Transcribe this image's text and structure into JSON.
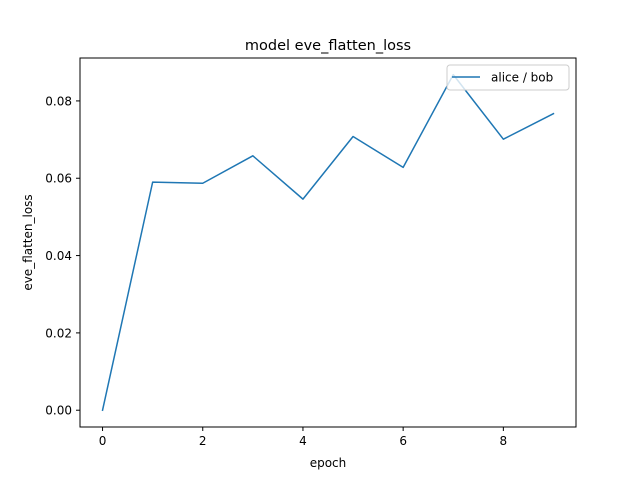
{
  "chart_data": {
    "type": "line",
    "title": "model eve_flatten_loss",
    "xlabel": "epoch",
    "ylabel": "eve_flatten_loss",
    "x": [
      0,
      1,
      2,
      3,
      4,
      5,
      6,
      7,
      8,
      9
    ],
    "series": [
      {
        "name": "alice / bob",
        "color": "#1f77b4",
        "values": [
          0.0,
          0.059,
          0.0587,
          0.0658,
          0.0546,
          0.0708,
          0.0628,
          0.0868,
          0.0701,
          0.0767
        ]
      }
    ],
    "xlim": [
      -0.45,
      9.45
    ],
    "ylim": [
      -0.00434,
      0.0911
    ],
    "xticks": [
      0,
      2,
      4,
      6,
      8
    ],
    "xtick_labels": [
      "0",
      "2",
      "4",
      "6",
      "8"
    ],
    "yticks": [
      0.0,
      0.02,
      0.04,
      0.06,
      0.08
    ],
    "ytick_labels": [
      "0.00",
      "0.02",
      "0.04",
      "0.06",
      "0.08"
    ],
    "grid": false,
    "legend_position": "top-right"
  }
}
